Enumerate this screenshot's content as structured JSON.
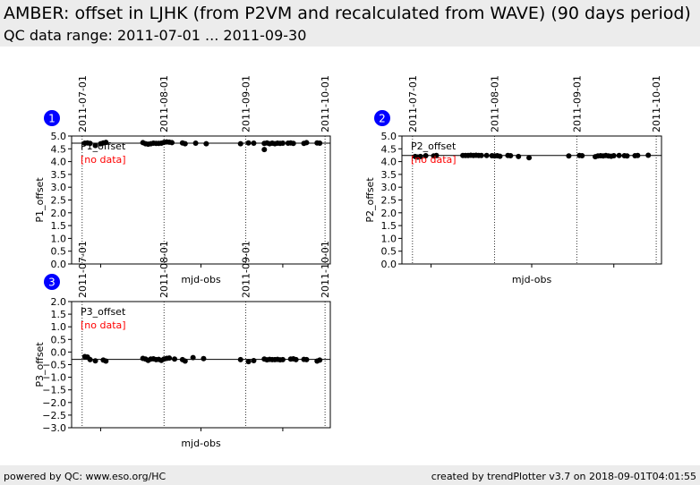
{
  "header": {
    "title": "AMBER: offset in LJHK (from P2VM and recalculated from WAVE) (90 days period)",
    "subtitle": "QC data range: 2011-07-01 ... 2011-09-30"
  },
  "footer": {
    "left": "powered by QC: www.eso.org/HC",
    "right": "created by trendPlotter v3.7 on 2018-09-01T04:01:55"
  },
  "colors": {
    "marker": "#000000",
    "no_data": "#ff0000",
    "badge": "#0000ff",
    "background": "#ececec"
  },
  "chart_data": [
    {
      "type": "scatter",
      "panel_number": "1",
      "series_label": "P1_offset",
      "no_data_label": "[no data]",
      "xlabel": "mjd-obs",
      "ylabel": "P1_offset",
      "date_ticks": [
        "2011-07-01",
        "2011-08-01",
        "2011-09-01",
        "2011-10-01"
      ],
      "ylim": [
        0.0,
        5.0
      ],
      "yticks": [
        "0.0",
        "0.5",
        "1.0",
        "1.5",
        "2.0",
        "2.5",
        "3.0",
        "3.5",
        "4.0",
        "4.5",
        "5.0"
      ],
      "reference_line": 4.72,
      "points": [
        [
          "2011-07-02",
          4.72
        ],
        [
          "2011-07-03",
          4.73
        ],
        [
          "2011-07-04",
          4.71
        ],
        [
          "2011-07-06",
          4.63
        ],
        [
          "2011-07-08",
          4.7
        ],
        [
          "2011-07-09",
          4.73
        ],
        [
          "2011-07-10",
          4.75
        ],
        [
          "2011-07-24",
          4.74
        ],
        [
          "2011-07-25",
          4.7
        ],
        [
          "2011-07-26",
          4.68
        ],
        [
          "2011-07-27",
          4.7
        ],
        [
          "2011-07-28",
          4.72
        ],
        [
          "2011-07-29",
          4.71
        ],
        [
          "2011-07-30",
          4.71
        ],
        [
          "2011-07-31",
          4.72
        ],
        [
          "2011-08-01",
          4.75
        ],
        [
          "2011-08-02",
          4.77
        ],
        [
          "2011-08-03",
          4.76
        ],
        [
          "2011-08-04",
          4.74
        ],
        [
          "2011-08-08",
          4.73
        ],
        [
          "2011-08-09",
          4.7
        ],
        [
          "2011-08-13",
          4.72
        ],
        [
          "2011-08-17",
          4.7
        ],
        [
          "2011-08-30",
          4.7
        ],
        [
          "2011-09-02",
          4.73
        ],
        [
          "2011-09-04",
          4.72
        ],
        [
          "2011-09-08",
          4.71
        ],
        [
          "2011-09-08",
          4.47
        ],
        [
          "2011-09-09",
          4.73
        ],
        [
          "2011-09-10",
          4.7
        ],
        [
          "2011-09-11",
          4.72
        ],
        [
          "2011-09-12",
          4.7
        ],
        [
          "2011-09-13",
          4.72
        ],
        [
          "2011-09-14",
          4.71
        ],
        [
          "2011-09-15",
          4.72
        ],
        [
          "2011-09-17",
          4.72
        ],
        [
          "2011-09-18",
          4.73
        ],
        [
          "2011-09-19",
          4.71
        ],
        [
          "2011-09-23",
          4.71
        ],
        [
          "2011-09-24",
          4.74
        ],
        [
          "2011-09-28",
          4.73
        ],
        [
          "2011-09-29",
          4.72
        ]
      ]
    },
    {
      "type": "scatter",
      "panel_number": "2",
      "series_label": "P2_offset",
      "no_data_label": "[no data]",
      "xlabel": "mjd-obs",
      "ylabel": "P2_offset",
      "date_ticks": [
        "2011-07-01",
        "2011-08-01",
        "2011-09-01",
        "2011-10-01"
      ],
      "ylim": [
        0.0,
        5.0
      ],
      "yticks": [
        "0.0",
        "0.5",
        "1.0",
        "1.5",
        "2.0",
        "2.5",
        "3.0",
        "3.5",
        "4.0",
        "4.5",
        "5.0"
      ],
      "reference_line": 4.24,
      "points": [
        [
          "2011-07-02",
          4.2
        ],
        [
          "2011-07-03",
          4.18
        ],
        [
          "2011-07-04",
          4.2
        ],
        [
          "2011-07-06",
          4.23
        ],
        [
          "2011-07-09",
          4.22
        ],
        [
          "2011-07-10",
          4.24
        ],
        [
          "2011-07-20",
          4.24
        ],
        [
          "2011-07-21",
          4.24
        ],
        [
          "2011-07-22",
          4.24
        ],
        [
          "2011-07-23",
          4.25
        ],
        [
          "2011-07-24",
          4.24
        ],
        [
          "2011-07-25",
          4.25
        ],
        [
          "2011-07-26",
          4.24
        ],
        [
          "2011-07-27",
          4.24
        ],
        [
          "2011-07-29",
          4.24
        ],
        [
          "2011-07-31",
          4.23
        ],
        [
          "2011-08-01",
          4.22
        ],
        [
          "2011-08-02",
          4.23
        ],
        [
          "2011-08-03",
          4.21
        ],
        [
          "2011-08-06",
          4.24
        ],
        [
          "2011-08-07",
          4.23
        ],
        [
          "2011-08-10",
          4.2
        ],
        [
          "2011-08-14",
          4.15
        ],
        [
          "2011-08-29",
          4.22
        ],
        [
          "2011-09-02",
          4.24
        ],
        [
          "2011-09-03",
          4.23
        ],
        [
          "2011-09-08",
          4.19
        ],
        [
          "2011-09-09",
          4.22
        ],
        [
          "2011-09-10",
          4.23
        ],
        [
          "2011-09-11",
          4.22
        ],
        [
          "2011-09-12",
          4.24
        ],
        [
          "2011-09-13",
          4.22
        ],
        [
          "2011-09-14",
          4.21
        ],
        [
          "2011-09-15",
          4.23
        ],
        [
          "2011-09-17",
          4.24
        ],
        [
          "2011-09-19",
          4.23
        ],
        [
          "2011-09-20",
          4.22
        ],
        [
          "2011-09-23",
          4.23
        ],
        [
          "2011-09-24",
          4.24
        ],
        [
          "2011-09-28",
          4.25
        ]
      ]
    },
    {
      "type": "scatter",
      "panel_number": "3",
      "series_label": "P3_offset",
      "no_data_label": "[no data]",
      "xlabel": "mjd-obs",
      "ylabel": "P3_offset",
      "date_ticks": [
        "2011-07-01",
        "2011-08-01",
        "2011-09-01",
        "2011-10-01"
      ],
      "ylim": [
        -3.0,
        2.0
      ],
      "yticks": [
        "−3.0",
        "−2.5",
        "−2.0",
        "−1.5",
        "−1.0",
        "−0.5",
        "0.0",
        "0.5",
        "1.0",
        "1.5",
        "2.0"
      ],
      "reference_line": -0.29,
      "points": [
        [
          "2011-07-02",
          -0.18
        ],
        [
          "2011-07-03",
          -0.2
        ],
        [
          "2011-07-04",
          -0.3
        ],
        [
          "2011-07-06",
          -0.35
        ],
        [
          "2011-07-09",
          -0.32
        ],
        [
          "2011-07-10",
          -0.36
        ],
        [
          "2011-07-24",
          -0.25
        ],
        [
          "2011-07-25",
          -0.28
        ],
        [
          "2011-07-26",
          -0.33
        ],
        [
          "2011-07-27",
          -0.28
        ],
        [
          "2011-07-28",
          -0.27
        ],
        [
          "2011-07-29",
          -0.3
        ],
        [
          "2011-07-30",
          -0.29
        ],
        [
          "2011-07-31",
          -0.33
        ],
        [
          "2011-08-01",
          -0.28
        ],
        [
          "2011-08-02",
          -0.25
        ],
        [
          "2011-08-03",
          -0.24
        ],
        [
          "2011-08-05",
          -0.28
        ],
        [
          "2011-08-08",
          -0.3
        ],
        [
          "2011-08-09",
          -0.36
        ],
        [
          "2011-08-12",
          -0.22
        ],
        [
          "2011-08-16",
          -0.26
        ],
        [
          "2011-08-30",
          -0.3
        ],
        [
          "2011-09-02",
          -0.38
        ],
        [
          "2011-09-04",
          -0.34
        ],
        [
          "2011-09-08",
          -0.28
        ],
        [
          "2011-09-09",
          -0.31
        ],
        [
          "2011-09-10",
          -0.29
        ],
        [
          "2011-09-11",
          -0.3
        ],
        [
          "2011-09-12",
          -0.3
        ],
        [
          "2011-09-13",
          -0.29
        ],
        [
          "2011-09-14",
          -0.31
        ],
        [
          "2011-09-15",
          -0.3
        ],
        [
          "2011-09-18",
          -0.28
        ],
        [
          "2011-09-19",
          -0.27
        ],
        [
          "2011-09-20",
          -0.3
        ],
        [
          "2011-09-23",
          -0.29
        ],
        [
          "2011-09-24",
          -0.3
        ],
        [
          "2011-09-28",
          -0.36
        ],
        [
          "2011-09-29",
          -0.32
        ]
      ]
    }
  ]
}
